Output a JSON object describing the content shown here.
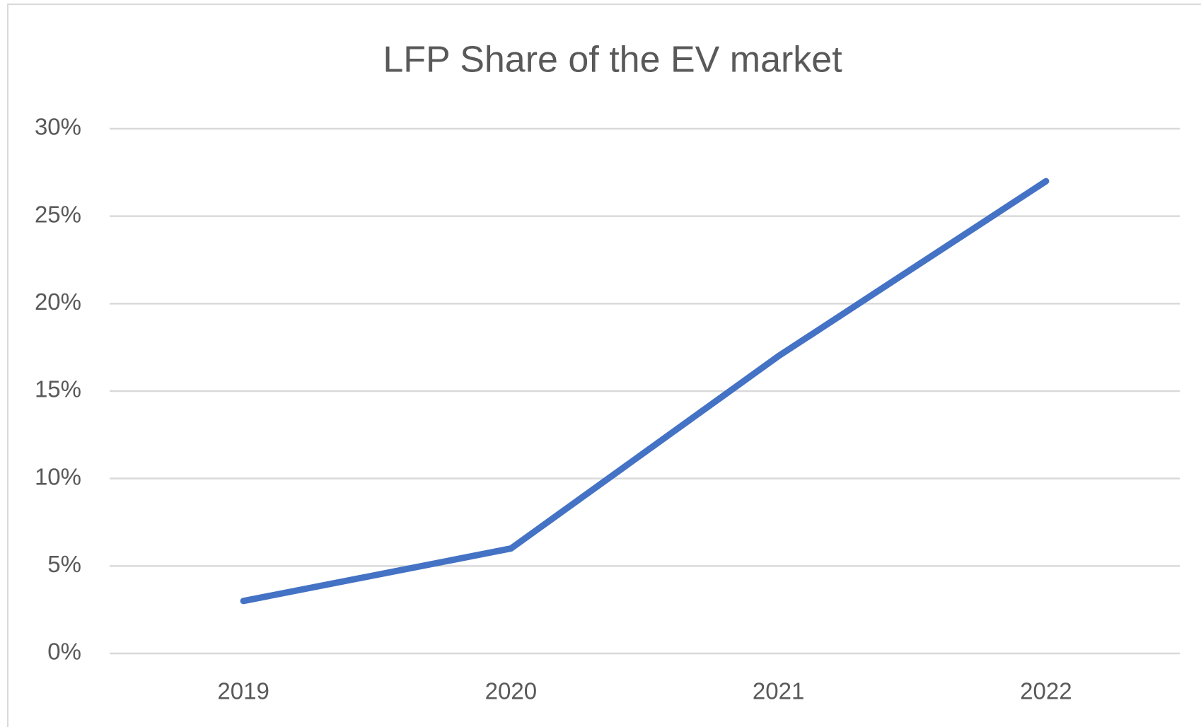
{
  "chart_data": {
    "type": "line",
    "title": "LFP Share of the EV market",
    "categories": [
      "2019",
      "2020",
      "2021",
      "2022"
    ],
    "series": [
      {
        "name": "LFP Share",
        "color": "#4472c4",
        "values": [
          3,
          6,
          17,
          27
        ]
      }
    ],
    "ylim": [
      0,
      30
    ],
    "yticks": [
      {
        "value": 0,
        "label": "0%"
      },
      {
        "value": 5,
        "label": "5%"
      },
      {
        "value": 10,
        "label": "10%"
      },
      {
        "value": 15,
        "label": "15%"
      },
      {
        "value": 20,
        "label": "20%"
      },
      {
        "value": 25,
        "label": "25%"
      },
      {
        "value": 30,
        "label": "30%"
      }
    ],
    "grid": true
  }
}
